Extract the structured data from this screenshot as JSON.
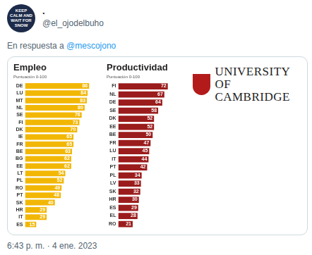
{
  "tweet": {
    "avatar_text": "KEEP CALM AND WAIT FOR SNOW",
    "name": ".",
    "handle": "@el_ojodelbuho",
    "reply_prefix": "En respuesta a",
    "reply_to": "@mescojono",
    "timestamp": "6:43 p. m. · 4 ene. 2023"
  },
  "logo": {
    "line1": "UNIVERSITY OF",
    "line2": "CAMBRIDGE"
  },
  "chart_data": [
    {
      "type": "bar",
      "title": "Empleo",
      "subtitle": "Puntuación 0-100",
      "orientation": "horizontal",
      "categories": [
        "DE",
        "LU",
        "MT",
        "NL",
        "SE",
        "FI",
        "DK",
        "IE",
        "FR",
        "BE",
        "BG",
        "EE",
        "LT",
        "PL",
        "RO",
        "PT",
        "SK",
        "HR",
        "IT",
        "ES"
      ],
      "values": [
        86,
        84,
        83,
        80,
        76,
        73,
        70,
        65,
        65,
        63,
        62,
        62,
        54,
        52,
        49,
        48,
        40,
        29,
        29,
        15
      ],
      "color": "#f2b705",
      "xlim": [
        0,
        100
      ],
      "data_labels": true,
      "tick_labels": "y",
      "grid": false
    },
    {
      "type": "bar",
      "title": "Productividad",
      "subtitle": "Puntuación 0-100",
      "orientation": "horizontal",
      "categories": [
        "FI",
        "NL",
        "DE",
        "SE",
        "DK",
        "EE",
        "BE",
        "FR",
        "LU",
        "IT",
        "PT",
        "PL",
        "LV",
        "SK",
        "HR",
        "ES",
        "EL",
        "RO"
      ],
      "values": [
        72,
        67,
        64,
        58,
        52,
        52,
        50,
        47,
        45,
        44,
        42,
        34,
        33,
        32,
        30,
        29,
        28,
        21
      ],
      "color": "#9b1c1c",
      "xlim": [
        0,
        100
      ],
      "data_labels": true,
      "tick_labels": "y",
      "grid": false
    }
  ]
}
